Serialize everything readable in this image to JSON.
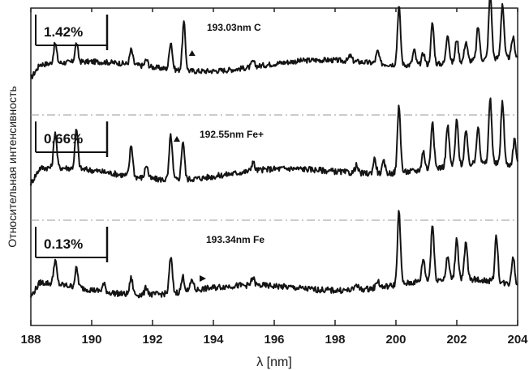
{
  "chart_data": {
    "type": "line",
    "xlabel": "λ [nm]",
    "ylabel": "Относительная интенсивность",
    "xlim": [
      188,
      204
    ],
    "x_ticks": [
      "188",
      "190",
      "192",
      "194",
      "196",
      "198",
      "200",
      "202",
      "204"
    ],
    "grid": false,
    "separators": "dashed horizontal lines between panels",
    "line_color": "#141414",
    "panels": [
      {
        "scale_label": "1.42%",
        "annotation": "193.03nm C",
        "marker_wavelength": 193.3,
        "baseline": 0.22,
        "peaks": [
          {
            "x": 188.8,
            "h": 0.3
          },
          {
            "x": 189.5,
            "h": 0.28
          },
          {
            "x": 191.3,
            "h": 0.22
          },
          {
            "x": 191.8,
            "h": 0.1
          },
          {
            "x": 192.6,
            "h": 0.42
          },
          {
            "x": 193.03,
            "h": 0.72
          },
          {
            "x": 195.3,
            "h": 0.08
          },
          {
            "x": 198.5,
            "h": 0.08
          },
          {
            "x": 199.4,
            "h": 0.18
          },
          {
            "x": 200.1,
            "h": 0.88
          },
          {
            "x": 200.6,
            "h": 0.22
          },
          {
            "x": 200.9,
            "h": 0.18
          },
          {
            "x": 201.2,
            "h": 0.62
          },
          {
            "x": 201.7,
            "h": 0.45
          },
          {
            "x": 202.0,
            "h": 0.35
          },
          {
            "x": 202.3,
            "h": 0.3
          },
          {
            "x": 202.7,
            "h": 0.5
          },
          {
            "x": 203.1,
            "h": 1.0
          },
          {
            "x": 203.5,
            "h": 0.82
          },
          {
            "x": 203.85,
            "h": 0.3
          }
        ]
      },
      {
        "scale_label": "0.66%",
        "annotation": "192.55nm Fe+",
        "marker_wavelength": 192.8,
        "baseline": 0.22,
        "peaks": [
          {
            "x": 188.8,
            "h": 0.48
          },
          {
            "x": 189.5,
            "h": 0.52
          },
          {
            "x": 191.3,
            "h": 0.42
          },
          {
            "x": 191.8,
            "h": 0.18
          },
          {
            "x": 192.6,
            "h": 0.6
          },
          {
            "x": 193.0,
            "h": 0.52
          },
          {
            "x": 195.3,
            "h": 0.12
          },
          {
            "x": 198.7,
            "h": 0.1
          },
          {
            "x": 199.3,
            "h": 0.2
          },
          {
            "x": 199.6,
            "h": 0.15
          },
          {
            "x": 200.1,
            "h": 0.9
          },
          {
            "x": 200.9,
            "h": 0.25
          },
          {
            "x": 201.2,
            "h": 0.65
          },
          {
            "x": 201.7,
            "h": 0.55
          },
          {
            "x": 202.0,
            "h": 0.6
          },
          {
            "x": 202.3,
            "h": 0.45
          },
          {
            "x": 202.7,
            "h": 0.52
          },
          {
            "x": 203.1,
            "h": 0.88
          },
          {
            "x": 203.5,
            "h": 0.85
          },
          {
            "x": 203.9,
            "h": 0.35
          }
        ]
      },
      {
        "scale_label": "0.13%",
        "annotation": "193.34nm Fe",
        "marker_wavelength": 193.6,
        "baseline": 0.12,
        "peaks": [
          {
            "x": 188.8,
            "h": 0.32
          },
          {
            "x": 189.5,
            "h": 0.25
          },
          {
            "x": 190.4,
            "h": 0.1
          },
          {
            "x": 191.3,
            "h": 0.22
          },
          {
            "x": 191.8,
            "h": 0.1
          },
          {
            "x": 192.6,
            "h": 0.48
          },
          {
            "x": 193.0,
            "h": 0.2
          },
          {
            "x": 193.3,
            "h": 0.15
          },
          {
            "x": 195.3,
            "h": 0.1
          },
          {
            "x": 198.7,
            "h": 0.08
          },
          {
            "x": 199.4,
            "h": 0.1
          },
          {
            "x": 200.1,
            "h": 0.98
          },
          {
            "x": 200.9,
            "h": 0.3
          },
          {
            "x": 201.2,
            "h": 0.75
          },
          {
            "x": 201.7,
            "h": 0.3
          },
          {
            "x": 202.0,
            "h": 0.55
          },
          {
            "x": 202.3,
            "h": 0.48
          },
          {
            "x": 203.3,
            "h": 0.62
          },
          {
            "x": 203.85,
            "h": 0.38
          }
        ]
      }
    ]
  }
}
